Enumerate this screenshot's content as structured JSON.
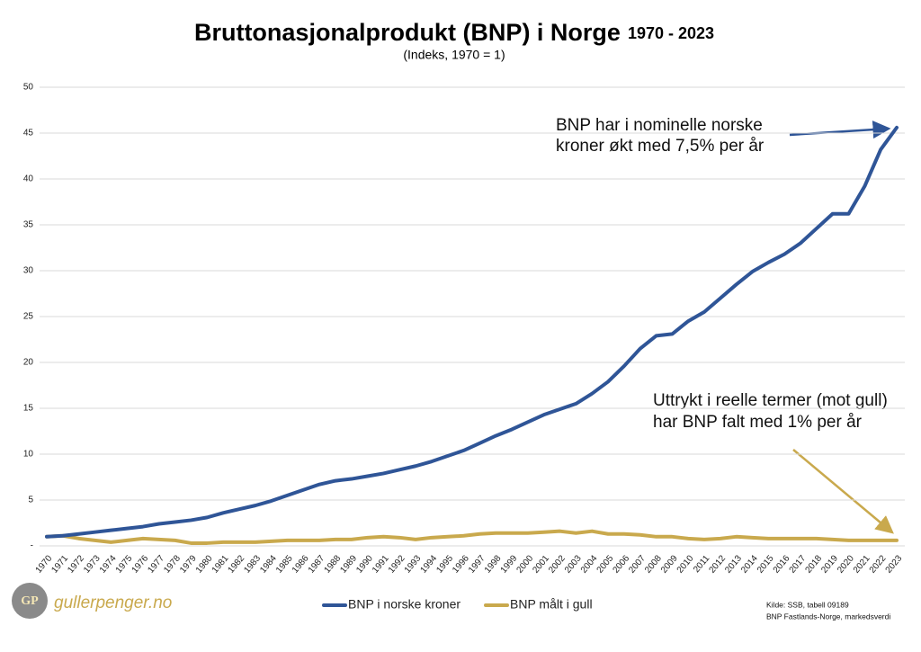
{
  "chart_data": {
    "type": "line",
    "title": "Bruttonasjonalprodukt (BNP) i Norge",
    "title_years": "1970 - 2023",
    "subtitle": "(Indeks, 1970 = 1)",
    "annotations": [
      [
        "BNP har i nominelle norske",
        "kroner økt med 7,5% per år"
      ],
      [
        "Uttrykt i reelle termer (mot gull)",
        "har BNP falt med 1% per år"
      ]
    ],
    "source": [
      "Kilde: SSB, tabell 09189",
      "BNP Fastlands-Norge, markedsverdi"
    ],
    "logo_mark": "GP",
    "logo_text": "gullerpenger.no",
    "categories": [
      "1970",
      "1971",
      "1972",
      "1973",
      "1974",
      "1975",
      "1976",
      "1977",
      "1978",
      "1979",
      "1980",
      "1981",
      "1982",
      "1983",
      "1984",
      "1985",
      "1986",
      "1987",
      "1988",
      "1989",
      "1990",
      "1991",
      "1992",
      "1993",
      "1994",
      "1995",
      "1996",
      "1997",
      "1998",
      "1999",
      "2000",
      "2001",
      "2002",
      "2003",
      "2004",
      "2005",
      "2006",
      "2007",
      "2008",
      "2009",
      "2010",
      "2011",
      "2012",
      "2013",
      "2014",
      "2015",
      "2016",
      "2017",
      "2018",
      "2019",
      "2020",
      "2021",
      "2022",
      "2023"
    ],
    "series": [
      {
        "name": "BNP i norske kroner",
        "color": "#2f5597",
        "values": [
          1.0,
          1.1,
          1.3,
          1.5,
          1.7,
          1.9,
          2.1,
          2.4,
          2.6,
          2.8,
          3.1,
          3.6,
          4.0,
          4.4,
          4.9,
          5.5,
          6.1,
          6.7,
          7.1,
          7.3,
          7.6,
          7.9,
          8.3,
          8.7,
          9.2,
          9.8,
          10.4,
          11.2,
          12.0,
          12.7,
          13.5,
          14.3,
          14.9,
          15.5,
          16.6,
          17.9,
          19.6,
          21.5,
          22.9,
          23.1,
          24.5,
          25.5,
          27.0,
          28.5,
          29.9,
          30.9,
          31.8,
          33.0,
          34.6,
          36.2,
          36.2,
          39.2,
          43.2,
          45.6
        ]
      },
      {
        "name": "BNP målt i gull",
        "color": "#c9a94d",
        "values": [
          1.0,
          1.1,
          0.8,
          0.6,
          0.4,
          0.6,
          0.8,
          0.7,
          0.6,
          0.3,
          0.3,
          0.4,
          0.4,
          0.4,
          0.5,
          0.6,
          0.6,
          0.6,
          0.7,
          0.7,
          0.9,
          1.0,
          0.9,
          0.7,
          0.9,
          1.0,
          1.1,
          1.3,
          1.4,
          1.4,
          1.4,
          1.5,
          1.6,
          1.4,
          1.6,
          1.3,
          1.3,
          1.2,
          1.0,
          1.0,
          0.8,
          0.7,
          0.8,
          1.0,
          0.9,
          0.8,
          0.8,
          0.8,
          0.8,
          0.7,
          0.6,
          0.6,
          0.6,
          0.6
        ]
      }
    ],
    "ylim": [
      0,
      50
    ],
    "yticks": [
      {
        "value": 0,
        "label": "-"
      },
      5,
      10,
      15,
      20,
      25,
      30,
      35,
      40,
      45,
      50
    ],
    "grid": true
  }
}
